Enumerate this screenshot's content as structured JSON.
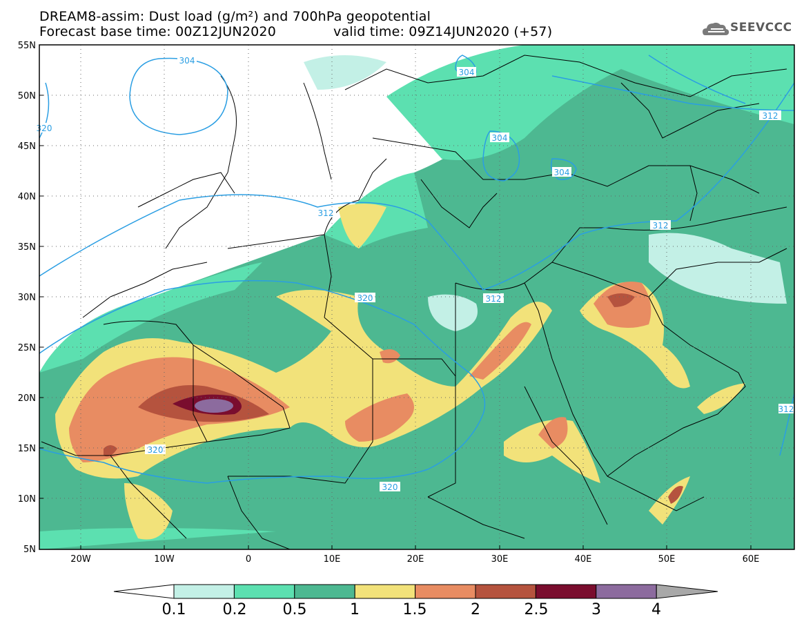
{
  "header": {
    "line1": "DREAM8-assim: Dust load (g/m²) and 700hPa geopotential",
    "line2_left": "Forecast base time: 00Z12JUN2020",
    "line2_right": "valid time: 09Z14JUN2020 (+57)"
  },
  "logo": {
    "text": "SEEVCCC",
    "icon": "cloud-icon"
  },
  "axes": {
    "lat_labels": [
      "55N",
      "50N",
      "45N",
      "40N",
      "35N",
      "30N",
      "25N",
      "20N",
      "15N",
      "10N",
      "5N"
    ],
    "lon_labels": [
      "20W",
      "10W",
      "0",
      "10E",
      "20E",
      "30E",
      "40E",
      "50E",
      "60E"
    ]
  },
  "contour_labels": [
    "304",
    "304",
    "304",
    "304",
    "312",
    "312",
    "312",
    "312",
    "312",
    "320",
    "320",
    "320",
    "320"
  ],
  "colorbar": {
    "labels": [
      "0.1",
      "0.2",
      "0.5",
      "1",
      "1.5",
      "2",
      "2.5",
      "3",
      "4"
    ],
    "colors": [
      "#c3f0e6",
      "#5ce0b0",
      "#4db891",
      "#f2e27a",
      "#e88c62",
      "#b5533e",
      "#7a0d2e",
      "#8c6b9e",
      "#a8a8a8"
    ]
  },
  "colors": {
    "contour": "#2a9ee3",
    "border": "#000000"
  }
}
